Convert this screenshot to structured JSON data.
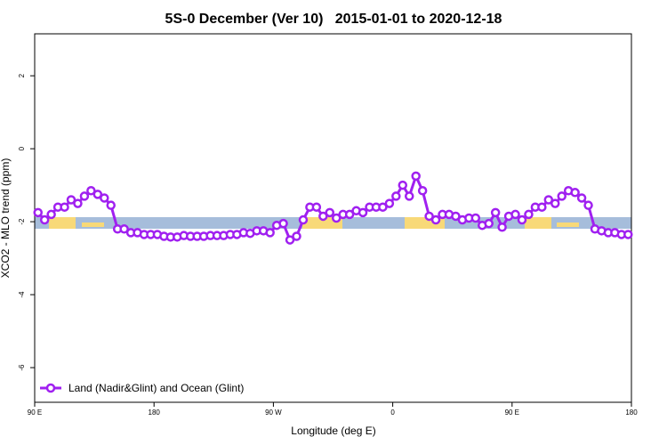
{
  "chart_data": {
    "type": "line",
    "title": "5S-0 December (Ver 10)   2015-01-01 to 2020-12-18",
    "x_label": "Longitude (deg E)",
    "y_label": "XCO2 - MLO trend (ppm)",
    "xlim": [
      90,
      540
    ],
    "xticks": [
      {
        "value": 90,
        "label": "90 E"
      },
      180,
      {
        "value": 270,
        "label": "90 W"
      },
      {
        "value": 360,
        "label": "0"
      },
      {
        "value": 450,
        "label": "90 E"
      },
      {
        "value": 540,
        "label": "180"
      }
    ],
    "ylim": [
      -6.95,
      3.15
    ],
    "yticks": [
      2,
      0,
      -2,
      -4,
      -6
    ],
    "legend": "bottom-left",
    "x": [
      92.5,
      97.5,
      102.5,
      107.5,
      112.5,
      117.5,
      122.5,
      127.5,
      132.5,
      137.5,
      142.5,
      147.5,
      152.5,
      157.5,
      162.5,
      167.5,
      172.5,
      177.5,
      182.5,
      187.5,
      192.5,
      197.5,
      202.5,
      207.5,
      212.5,
      217.5,
      222.5,
      227.5,
      232.5,
      237.5,
      242.5,
      247.5,
      252.5,
      257.5,
      262.5,
      267.5,
      272.5,
      277.5,
      282.5,
      287.5,
      292.5,
      297.5,
      302.5,
      307.5,
      312.5,
      317.5,
      322.5,
      327.5,
      332.5,
      337.5,
      342.5,
      347.5,
      352.5,
      357.5,
      362.5,
      367.5,
      372.5,
      377.5,
      382.5,
      387.5,
      392.5,
      397.5,
      402.5,
      407.5,
      412.5,
      417.5,
      422.5,
      427.5,
      432.5,
      437.5,
      442.5,
      447.5,
      452.5,
      457.5,
      462.5,
      467.5,
      472.5,
      477.5,
      482.5,
      487.5,
      492.5,
      497.5,
      502.5,
      507.5,
      512.5,
      517.5,
      522.5,
      527.5,
      532.5,
      537.5
    ],
    "series": [
      {
        "name": "Land (Nadir&Glint) and Ocean (Glint)",
        "color": "#a020f0",
        "values": [
          -1.75,
          -1.95,
          -1.8,
          -1.6,
          -1.6,
          -1.4,
          -1.5,
          -1.3,
          -1.15,
          -1.25,
          -1.35,
          -1.55,
          -2.2,
          -2.2,
          -2.3,
          -2.3,
          -2.35,
          -2.35,
          -2.35,
          -2.4,
          -2.42,
          -2.42,
          -2.38,
          -2.4,
          -2.4,
          -2.4,
          -2.38,
          -2.38,
          -2.38,
          -2.35,
          -2.35,
          -2.3,
          -2.32,
          -2.25,
          -2.25,
          -2.3,
          -2.1,
          -2.05,
          -2.5,
          -2.4,
          -1.95,
          -1.6,
          -1.6,
          -1.85,
          -1.75,
          -1.9,
          -1.8,
          -1.8,
          -1.7,
          -1.75,
          -1.6,
          -1.6,
          -1.6,
          -1.5,
          -1.3,
          -1.0,
          -1.3,
          -0.75,
          -1.15,
          -1.85,
          -1.95,
          -1.8,
          -1.8,
          -1.85,
          -1.95,
          -1.9,
          -1.9,
          -2.1,
          -2.05,
          -1.75,
          -2.15,
          -1.85,
          -1.8,
          -1.95,
          -1.8,
          -1.6,
          -1.6,
          -1.4,
          -1.5,
          -1.3,
          -1.15,
          -1.2,
          -1.35,
          -1.55,
          -2.2,
          -2.25,
          -2.3,
          -2.3,
          -2.35,
          -2.35
        ]
      }
    ]
  }
}
